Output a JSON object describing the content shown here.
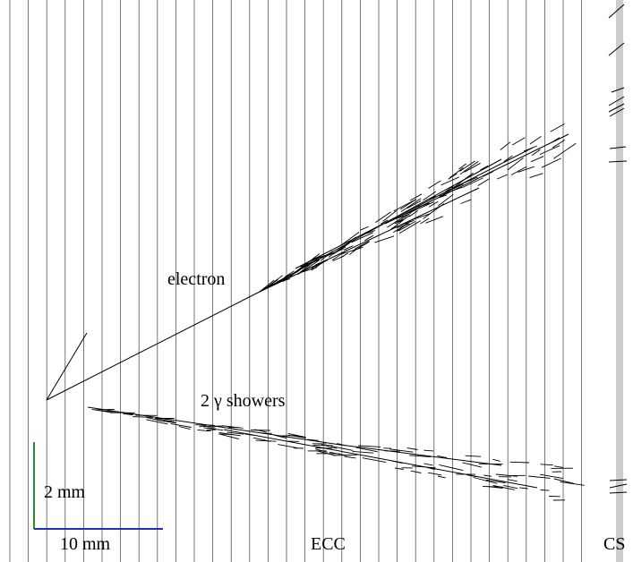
{
  "labels": {
    "electron": "electron",
    "showers": "2 γ showers",
    "scale_vertical": "2 mm",
    "scale_horizontal": "10 mm",
    "ecc": "ECC",
    "cs": "CS"
  },
  "colors": {
    "plate_lines": "#555555",
    "tracks": "#000000",
    "scale_vertical": "#2e8b2e",
    "scale_horizontal": "#1f2fbf",
    "cs_plate": "#cccccc",
    "background": "#ffffff"
  }
}
